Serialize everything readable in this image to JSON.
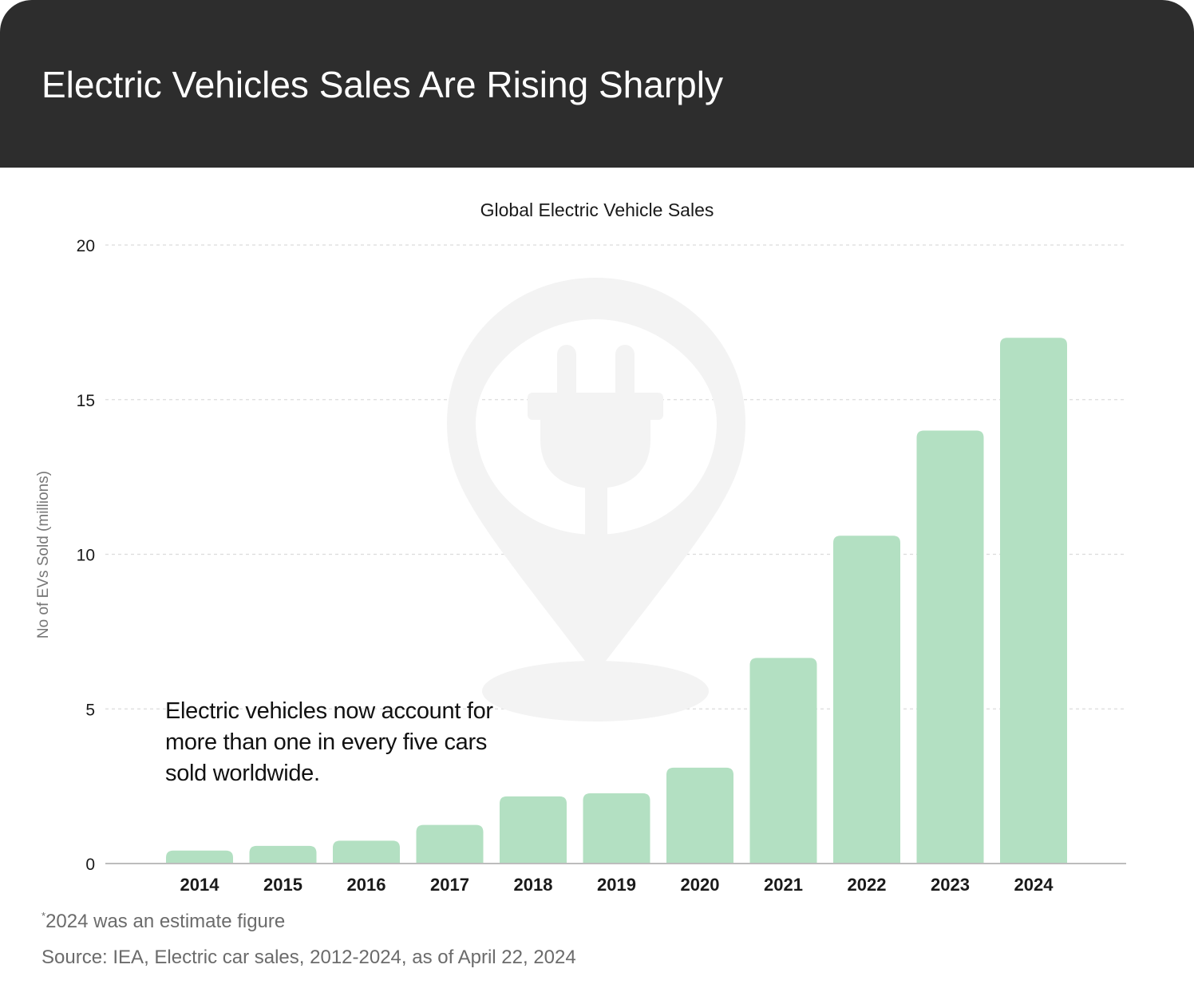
{
  "header": {
    "title": "Electric Vehicles Sales Are Rising Sharply",
    "background": "#2d2d2d"
  },
  "chart_data": {
    "type": "bar",
    "title": "Global Electric Vehicle Sales",
    "xlabel": "",
    "ylabel": "No of EVs Sold (millions)",
    "categories": [
      "2014",
      "2015",
      "2016",
      "2017",
      "2018",
      "2019",
      "2020",
      "2021",
      "2022",
      "2023",
      "2024"
    ],
    "values": [
      0.42,
      0.57,
      0.74,
      1.25,
      2.17,
      2.27,
      3.1,
      6.65,
      10.6,
      14.0,
      17.0
    ],
    "ylim": [
      0,
      20
    ],
    "yticks": [
      "0",
      "5",
      "10",
      "15",
      "20"
    ],
    "grid": true,
    "bar_color": "#b3e0c2",
    "background_icon": "ev-charging-plug-location-pin-icon"
  },
  "annotation": "Electric vehicles now account for more than one in every five cars sold worldwide.",
  "footnote": {
    "marker": "*",
    "text": "2024 was an estimate figure"
  },
  "source": "Source: IEA, Electric car sales, 2012-2024, as of April 22, 2024"
}
